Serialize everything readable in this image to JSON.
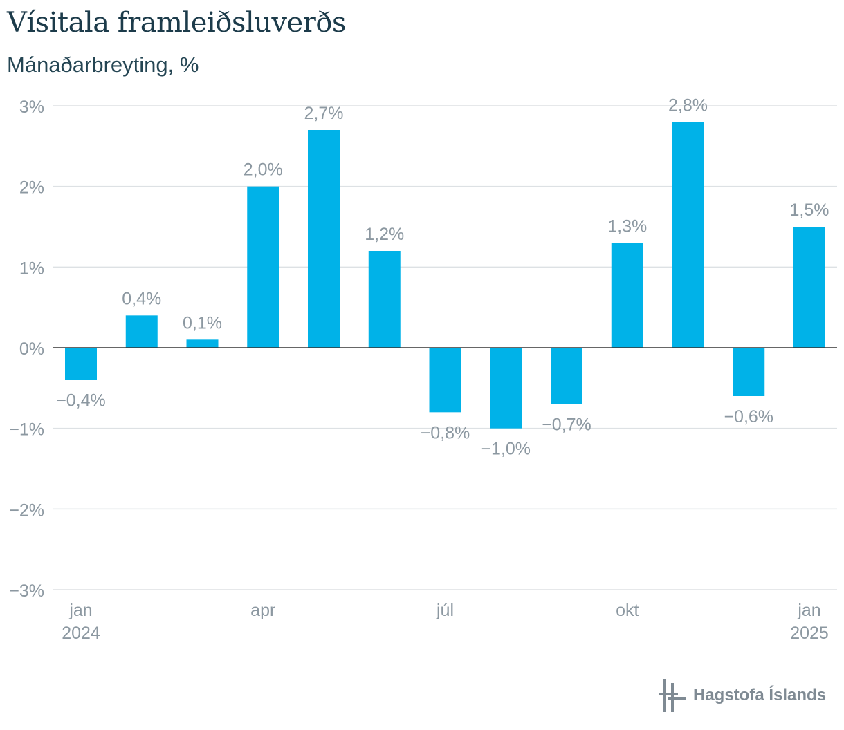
{
  "header": {
    "title": "Vísitala framleiðsluverðs",
    "subtitle": "Mánaðarbreyting, %"
  },
  "chart_data": {
    "type": "bar",
    "title": "Vísitala framleiðsluverðs",
    "subtitle": "Mánaðarbreyting, %",
    "categories": [
      "jan 2024",
      "feb 2024",
      "mar 2024",
      "apr 2024",
      "maí 2024",
      "jún 2024",
      "júl 2024",
      "ágú 2024",
      "sep 2024",
      "okt 2024",
      "nóv 2024",
      "des 2024",
      "jan 2025"
    ],
    "values": [
      -0.4,
      0.4,
      0.1,
      2.0,
      2.7,
      1.2,
      -0.8,
      -1.0,
      -0.7,
      1.3,
      2.8,
      -0.6,
      1.5
    ],
    "data_labels": [
      "−0,4%",
      "0,4%",
      "0,1%",
      "2,0%",
      "2,7%",
      "1,2%",
      "−0,8%",
      "−1,0%",
      "−0,7%",
      "1,3%",
      "2,8%",
      "−0,6%",
      "1,5%"
    ],
    "y_ticks": [
      3,
      2,
      1,
      0,
      -1,
      -2,
      -3
    ],
    "y_tick_labels": [
      "3%",
      "2%",
      "1%",
      "0%",
      "−1%",
      "−2%",
      "−3%"
    ],
    "x_tick_labels": [
      {
        "index": 0,
        "line1": "jan",
        "line2": "2024"
      },
      {
        "index": 3,
        "line1": "apr",
        "line2": ""
      },
      {
        "index": 6,
        "line1": "júl",
        "line2": ""
      },
      {
        "index": 9,
        "line1": "okt",
        "line2": ""
      },
      {
        "index": 12,
        "line1": "jan",
        "line2": "2025"
      }
    ],
    "ylim": [
      -3,
      3
    ],
    "xlabel": "",
    "ylabel": "",
    "grid": true,
    "bar_color": "#00b2e8"
  },
  "branding": {
    "logo_text": "Hagstofa Íslands",
    "logo_icon": "hagstofa-logo-icon"
  }
}
